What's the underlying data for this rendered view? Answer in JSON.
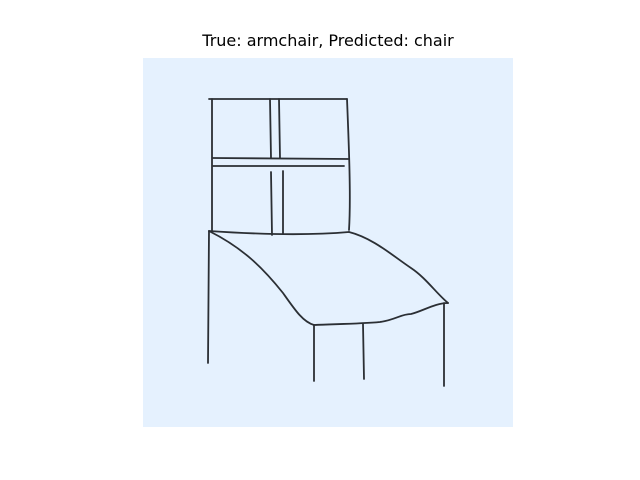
{
  "title": "True: armchair, Predicted: chair",
  "colors": {
    "panel_background": "#e5f1fe",
    "stroke": "#2b2f34"
  }
}
